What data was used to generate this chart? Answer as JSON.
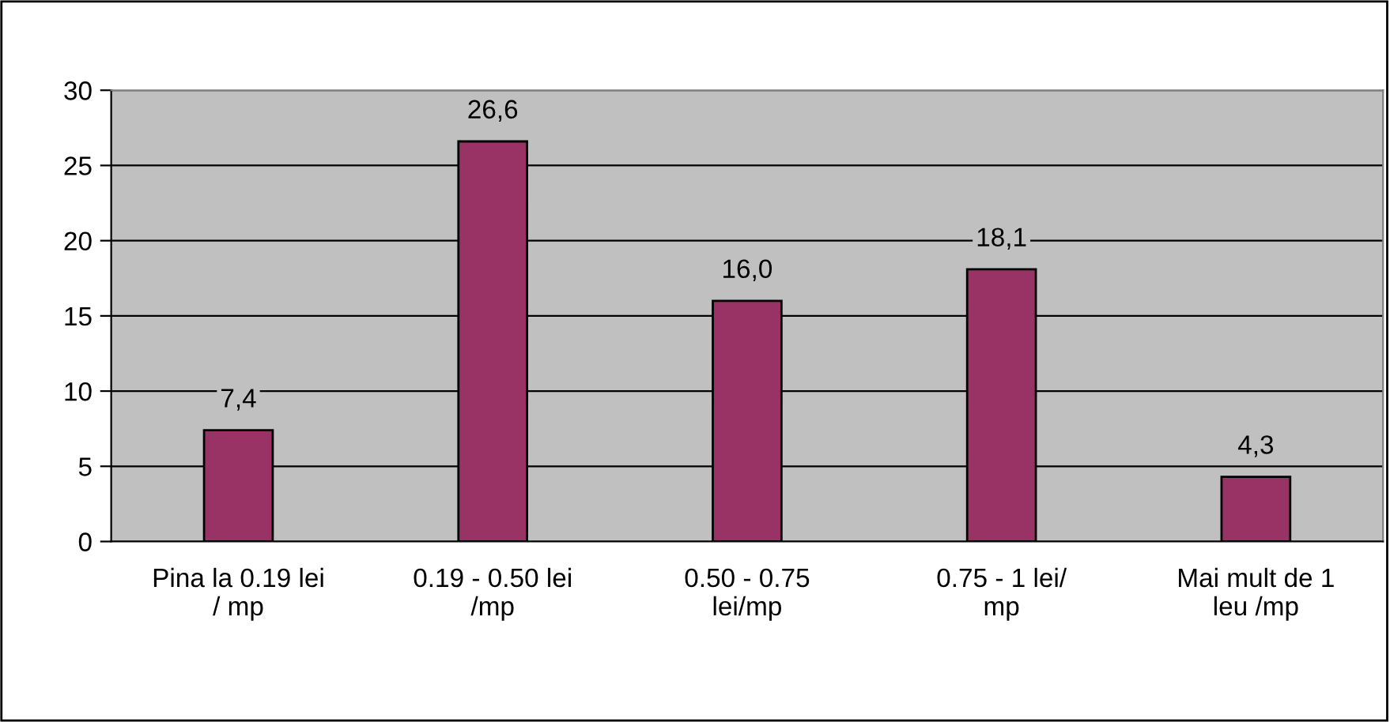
{
  "chart_data": {
    "type": "bar",
    "categories": [
      "Pina la 0.19 lei\n/ mp",
      "0.19 - 0.50 lei\n/mp",
      "0.50 - 0.75\nlei/mp",
      "0.75 - 1 lei/\nmp",
      "Mai mult de 1\nleu /mp"
    ],
    "values": [
      7.4,
      26.6,
      16.0,
      18.1,
      4.3
    ],
    "value_labels": [
      "7,4",
      "26,6",
      "16,0",
      "18,1",
      "4,3"
    ],
    "color": "#993366",
    "ylim": [
      0,
      30
    ],
    "yticks": [
      0,
      5,
      10,
      15,
      20,
      25,
      30
    ],
    "grid": "y"
  }
}
